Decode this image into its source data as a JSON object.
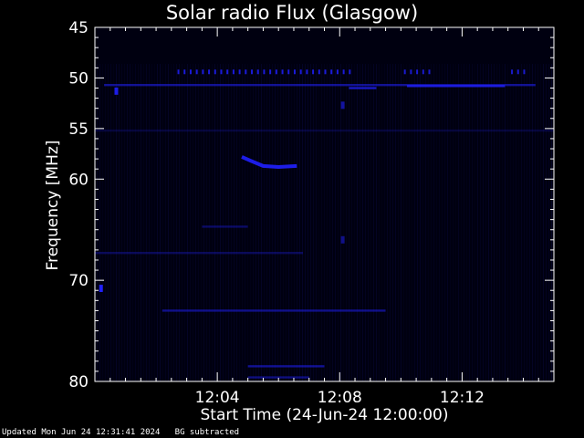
{
  "chart_data": {
    "type": "heatmap",
    "title": "Solar radio Flux (Glasgow)",
    "xlabel": "Start Time (24-Jun-24 12:00:00)",
    "ylabel": "Frequency [MHz]",
    "x_unit": "minutes after 12:00:00",
    "xlim": [
      0,
      15
    ],
    "ylim": [
      45,
      80
    ],
    "y_inverted": true,
    "x_ticks": [
      {
        "value": 4,
        "label": "12:04"
      },
      {
        "value": 8,
        "label": "12:08"
      },
      {
        "value": 12,
        "label": "12:12"
      }
    ],
    "y_ticks": [
      {
        "value": 45,
        "label": "45"
      },
      {
        "value": 50,
        "label": "50"
      },
      {
        "value": 55,
        "label": "55"
      },
      {
        "value": 60,
        "label": "60"
      },
      {
        "value": 70,
        "label": "70"
      },
      {
        "value": 80,
        "label": "80"
      }
    ],
    "background_color": "#000010",
    "signal_color": "#2020ff",
    "features": [
      {
        "kind": "dashed-band",
        "freq": 49.4,
        "t_start": 2.7,
        "t_end": 8.5,
        "intensity": 0.85
      },
      {
        "kind": "dashed-band",
        "freq": 49.4,
        "t_start": 10.1,
        "t_end": 11.0,
        "intensity": 0.8
      },
      {
        "kind": "dashed-band",
        "freq": 49.4,
        "t_start": 13.6,
        "t_end": 14.1,
        "intensity": 0.8
      },
      {
        "kind": "band",
        "freq": 50.7,
        "t_start": 0.3,
        "t_end": 14.4,
        "intensity": 0.55
      },
      {
        "kind": "band",
        "freq": 50.8,
        "t_start": 10.2,
        "t_end": 13.4,
        "intensity": 0.8
      },
      {
        "kind": "band",
        "freq": 51.0,
        "t_start": 8.3,
        "t_end": 9.2,
        "intensity": 0.75
      },
      {
        "kind": "band",
        "freq": 55.2,
        "t_start": 0.0,
        "t_end": 15.0,
        "intensity": 0.18
      },
      {
        "kind": "band",
        "freq": 67.3,
        "t_start": 0.0,
        "t_end": 6.8,
        "intensity": 0.3
      },
      {
        "kind": "band",
        "freq": 73.0,
        "t_start": 2.2,
        "t_end": 9.5,
        "intensity": 0.5
      },
      {
        "kind": "band",
        "freq": 78.5,
        "t_start": 5.0,
        "t_end": 7.5,
        "intensity": 0.55
      },
      {
        "kind": "band",
        "freq": 79.6,
        "t_start": 5.0,
        "t_end": 7.0,
        "intensity": 0.45
      },
      {
        "kind": "band",
        "freq": 64.7,
        "t_start": 3.5,
        "t_end": 5.0,
        "intensity": 0.35
      },
      {
        "kind": "blob",
        "freq": 51.3,
        "t": 0.7,
        "intensity": 0.9
      },
      {
        "kind": "blob",
        "freq": 70.8,
        "t": 0.2,
        "intensity": 1.0
      },
      {
        "kind": "blob",
        "freq": 52.7,
        "t": 8.1,
        "intensity": 0.6
      },
      {
        "kind": "blob",
        "freq": 66.0,
        "t": 8.1,
        "intensity": 0.5
      },
      {
        "kind": "drift",
        "points": [
          [
            4.8,
            57.8
          ],
          [
            5.1,
            58.2
          ],
          [
            5.5,
            58.7
          ],
          [
            6.0,
            58.8
          ],
          [
            6.6,
            58.7
          ]
        ],
        "intensity": 0.9
      }
    ]
  },
  "footer": {
    "updated": "Updated Mon Jun 24 12:31:41 2024",
    "note": "BG subtracted"
  }
}
